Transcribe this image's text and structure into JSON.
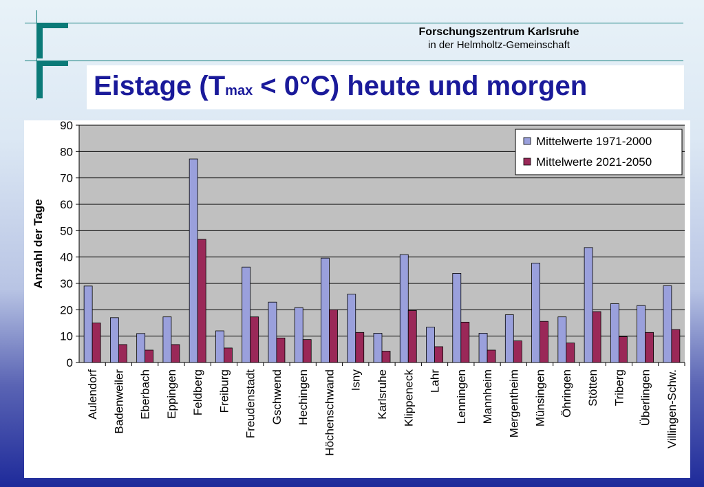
{
  "header": {
    "org_line1": "Forschungszentrum Karlsruhe",
    "org_line2": "in der Helmholtz-Gemeinschaft"
  },
  "slide": {
    "title_pre": "Eistage (T",
    "title_sub": "max",
    "title_post": " < 0°C) heute und morgen"
  },
  "colors": {
    "series1": "#9aa0dc",
    "series2": "#9a2858",
    "plot_bg": "#c0c0c0",
    "accent": "#0b7a78",
    "title": "#1a1a9a"
  },
  "chart_data": {
    "type": "bar",
    "ylabel": "Anzahl der Tage",
    "xlabel": "",
    "ylim": [
      0,
      90
    ],
    "yticks": [
      0,
      10,
      20,
      30,
      40,
      50,
      60,
      70,
      80,
      90
    ],
    "grid": true,
    "legend_position": "top-right",
    "categories": [
      "Aulendorf",
      "Badenweiler",
      "Eberbach",
      "Eppingen",
      "Feldberg",
      "Freiburg",
      "Freudenstadt",
      "Gschwend",
      "Hechingen",
      "Höchenschwand",
      "Isny",
      "Karlsruhe",
      "Klippeneck",
      "Lahr",
      "Lenningen",
      "Mannheim",
      "Mergentheim",
      "Münsingen",
      "Öhringen",
      "Stötten",
      "Triberg",
      "Überlingen",
      "Villingen-Schw."
    ],
    "series": [
      {
        "name": "Mittelwerte 1971-2000",
        "values": [
          29,
          17,
          11,
          17.3,
          77.2,
          12,
          36.2,
          22.9,
          20.8,
          39.6,
          25.9,
          11.1,
          40.9,
          13.4,
          33.8,
          11.1,
          18.1,
          37.7,
          17.3,
          43.6,
          22.3,
          21.6,
          29.1
        ]
      },
      {
        "name": "Mittelwerte 2021-2050",
        "values": [
          15,
          6.8,
          4.7,
          6.8,
          46.7,
          5.5,
          17.3,
          9.3,
          8.7,
          20,
          11.4,
          4.3,
          19.7,
          6,
          15.3,
          4.7,
          8.2,
          15.6,
          7.4,
          19.3,
          9.8,
          11.4,
          12.5
        ]
      }
    ]
  }
}
